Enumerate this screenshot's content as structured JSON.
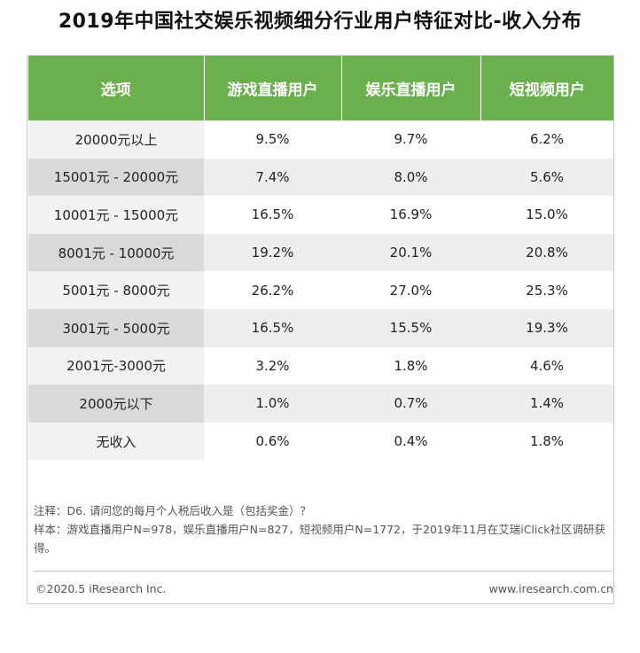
{
  "title": "2019年中国社交娱乐视频细分行业用户特征对比-收入分布",
  "chart_data": {
    "type": "table",
    "columns": [
      "选项",
      "游戏直播用户",
      "娱乐直播用户",
      "短视频用户"
    ],
    "rows": [
      {
        "label": "20000元以上",
        "values": [
          "9.5%",
          "9.7%",
          "6.2%"
        ]
      },
      {
        "label": "15001元 - 20000元",
        "values": [
          "7.4%",
          "8.0%",
          "5.6%"
        ]
      },
      {
        "label": "10001元 - 15000元",
        "values": [
          "16.5%",
          "16.9%",
          "15.0%"
        ]
      },
      {
        "label": "8001元 - 10000元",
        "values": [
          "19.2%",
          "20.1%",
          "20.8%"
        ]
      },
      {
        "label": "5001元 - 8000元",
        "values": [
          "26.2%",
          "27.0%",
          "25.3%"
        ]
      },
      {
        "label": "3001元 - 5000元",
        "values": [
          "16.5%",
          "15.5%",
          "19.3%"
        ]
      },
      {
        "label": "2001元-3000元",
        "values": [
          "3.2%",
          "1.8%",
          "4.6%"
        ]
      },
      {
        "label": "2000元以下",
        "values": [
          "1.0%",
          "0.7%",
          "1.4%"
        ]
      },
      {
        "label": "无收入",
        "values": [
          "0.6%",
          "0.4%",
          "1.8%"
        ]
      }
    ]
  },
  "notes": {
    "note": "注释：D6. 请问您的每月个人税后收入是（包括奖金）？",
    "sample": "样本：游戏直播用户N=978，娱乐直播用户N=827，短视频用户N=1772，于2019年11月在艾瑞iClick社区调研获得。"
  },
  "footer": {
    "copyright": "©2020.5 iResearch Inc.",
    "website": "www.iresearch.com.cn"
  },
  "colors": {
    "header_green": "#6ab04c",
    "row_alt": "#eeeeee"
  }
}
